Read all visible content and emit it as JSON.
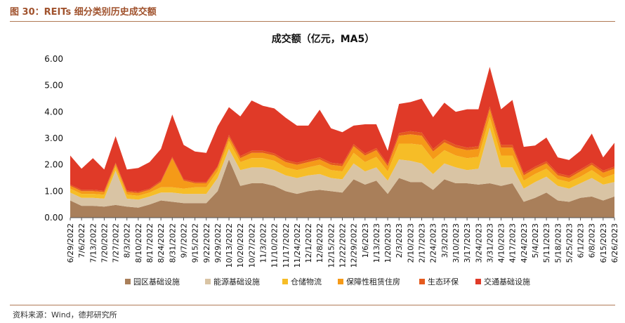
{
  "figure": {
    "label": "图 30：",
    "caption": "REITs 细分类别历史成交额",
    "source": "资料来源：Wind，德邦研究所"
  },
  "chart_data": {
    "type": "area",
    "stacked": true,
    "title": "成交额（亿元，MA5）",
    "xlabel": "",
    "ylabel": "",
    "ylim": [
      0,
      6
    ],
    "yticks": [
      "0.00",
      "1.00",
      "2.00",
      "3.00",
      "4.00",
      "5.00",
      "6.00"
    ],
    "grid": false,
    "legend_position": "bottom",
    "x": [
      "6/29/2022",
      "7/6/2022",
      "7/13/2022",
      "7/20/2022",
      "7/27/2022",
      "8/3/2022",
      "8/10/2022",
      "8/17/2022",
      "8/24/2022",
      "8/31/2022",
      "9/7/2022",
      "9/15/2022",
      "9/22/2022",
      "9/29/2022",
      "10/13/2022",
      "10/20/2022",
      "10/27/2022",
      "11/3/2022",
      "11/10/2022",
      "11/17/2022",
      "11/24/2022",
      "12/1/2022",
      "12/8/2022",
      "12/15/2022",
      "12/22/2022",
      "12/29/2022",
      "1/6/2023",
      "1/13/2023",
      "1/20/2023",
      "2/3/2023",
      "2/10/2023",
      "2/17/2023",
      "2/24/2023",
      "3/3/2023",
      "3/10/2023",
      "3/17/2023",
      "3/24/2023",
      "3/31/2023",
      "4/10/2023",
      "4/17/2023",
      "4/24/2023",
      "5/4/2023",
      "5/11/2023",
      "5/18/2023",
      "5/25/2023",
      "6/1/2023",
      "6/8/2023",
      "6/15/2023",
      "6/26/2023"
    ],
    "series": [
      {
        "name": "园区基础设施",
        "color": "#a97f5a",
        "values": [
          0.65,
          0.45,
          0.45,
          0.42,
          0.48,
          0.42,
          0.38,
          0.5,
          0.65,
          0.6,
          0.55,
          0.55,
          0.55,
          1.0,
          2.2,
          1.2,
          1.3,
          1.3,
          1.2,
          1.0,
          0.9,
          1.0,
          1.05,
          1.0,
          0.95,
          1.45,
          1.25,
          1.4,
          0.9,
          1.5,
          1.35,
          1.35,
          1.05,
          1.45,
          1.3,
          1.3,
          1.25,
          1.3,
          1.2,
          1.3,
          0.6,
          0.75,
          0.95,
          0.65,
          0.6,
          0.75,
          0.8,
          0.65,
          0.8
        ]
      },
      {
        "name": "能源基础设施",
        "color": "#d9c4a4",
        "values": [
          0.3,
          0.3,
          0.3,
          0.3,
          1.3,
          0.3,
          0.3,
          0.3,
          0.3,
          0.35,
          0.35,
          0.35,
          0.35,
          0.5,
          0.4,
          0.6,
          0.6,
          0.6,
          0.6,
          0.6,
          0.6,
          0.6,
          0.6,
          0.5,
          0.5,
          0.6,
          0.5,
          0.5,
          0.5,
          0.7,
          0.8,
          0.7,
          0.6,
          0.6,
          0.6,
          0.5,
          0.6,
          2.1,
          0.7,
          0.6,
          0.5,
          0.6,
          0.6,
          0.55,
          0.5,
          0.55,
          0.7,
          0.6,
          0.55
        ]
      },
      {
        "name": "仓储物流",
        "color": "#f6bd27",
        "values": [
          0.15,
          0.15,
          0.15,
          0.15,
          0.15,
          0.15,
          0.15,
          0.15,
          0.2,
          0.2,
          0.2,
          0.25,
          0.25,
          0.25,
          0.3,
          0.3,
          0.35,
          0.35,
          0.35,
          0.3,
          0.3,
          0.3,
          0.35,
          0.3,
          0.3,
          0.4,
          0.35,
          0.4,
          0.35,
          0.6,
          0.65,
          0.7,
          0.55,
          0.5,
          0.45,
          0.45,
          0.45,
          0.4,
          0.45,
          0.45,
          0.3,
          0.3,
          0.3,
          0.25,
          0.25,
          0.25,
          0.3,
          0.25,
          0.3
        ]
      },
      {
        "name": "保障性租赁住房",
        "color": "#f59a18",
        "values": [
          0.1,
          0.1,
          0.1,
          0.1,
          0.1,
          0.1,
          0.1,
          0.1,
          0.2,
          1.1,
          0.3,
          0.15,
          0.15,
          0.15,
          0.15,
          0.15,
          0.2,
          0.2,
          0.2,
          0.2,
          0.2,
          0.2,
          0.2,
          0.2,
          0.2,
          0.25,
          0.25,
          0.25,
          0.2,
          0.3,
          0.35,
          0.35,
          0.3,
          0.3,
          0.3,
          0.3,
          0.3,
          0.3,
          0.3,
          0.3,
          0.2,
          0.2,
          0.2,
          0.15,
          0.15,
          0.2,
          0.2,
          0.2,
          0.2
        ]
      },
      {
        "name": "生态环保",
        "color": "#e55a1e",
        "values": [
          0.05,
          0.05,
          0.05,
          0.05,
          0.05,
          0.05,
          0.05,
          0.05,
          0.05,
          0.05,
          0.05,
          0.05,
          0.05,
          0.05,
          0.08,
          0.08,
          0.08,
          0.08,
          0.08,
          0.08,
          0.08,
          0.08,
          0.08,
          0.08,
          0.08,
          0.08,
          0.08,
          0.08,
          0.08,
          0.1,
          0.12,
          0.12,
          0.1,
          0.1,
          0.1,
          0.1,
          0.1,
          0.1,
          0.1,
          0.1,
          0.08,
          0.08,
          0.08,
          0.08,
          0.08,
          0.08,
          0.08,
          0.08,
          0.08
        ]
      },
      {
        "name": "交通基础设施",
        "color": "#e03a28",
        "values": [
          1.1,
          0.8,
          1.2,
          0.8,
          1.0,
          0.8,
          0.9,
          1.0,
          1.2,
          1.6,
          1.3,
          1.15,
          1.1,
          1.5,
          1.05,
          1.5,
          1.9,
          1.7,
          1.7,
          1.6,
          1.4,
          1.3,
          1.8,
          1.3,
          1.2,
          0.7,
          1.1,
          0.9,
          0.5,
          1.1,
          1.1,
          1.28,
          1.2,
          1.4,
          1.25,
          1.45,
          1.4,
          1.5,
          1.35,
          1.7,
          1.0,
          0.8,
          0.9,
          0.6,
          0.6,
          0.7,
          1.1,
          0.5,
          0.9
        ]
      }
    ]
  }
}
